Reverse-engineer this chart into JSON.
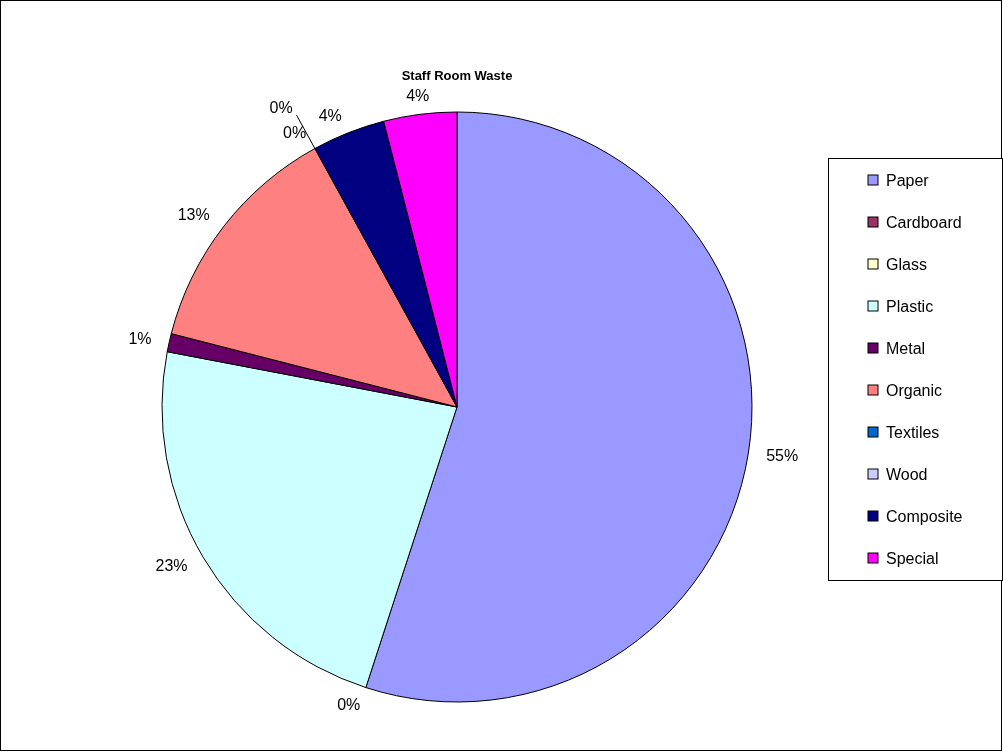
{
  "chart_data": {
    "type": "pie",
    "title": "Staff Room Waste",
    "categories": [
      "Paper",
      "Cardboard",
      "Glass",
      "Plastic",
      "Metal",
      "Organic",
      "Textiles",
      "Wood",
      "Composite",
      "Special"
    ],
    "values": [
      55,
      0,
      0,
      23,
      1,
      13,
      0,
      0,
      4,
      4
    ],
    "colors": [
      "#9999ff",
      "#993366",
      "#ffffcc",
      "#ccffff",
      "#660066",
      "#ff8080",
      "#0066cc",
      "#ccccff",
      "#000080",
      "#ff00ff"
    ],
    "value_labels": [
      "55%",
      "0%",
      null,
      "23%",
      "1%",
      "13%",
      "0%",
      "0%",
      "4%",
      "4%"
    ],
    "legend": "right"
  }
}
